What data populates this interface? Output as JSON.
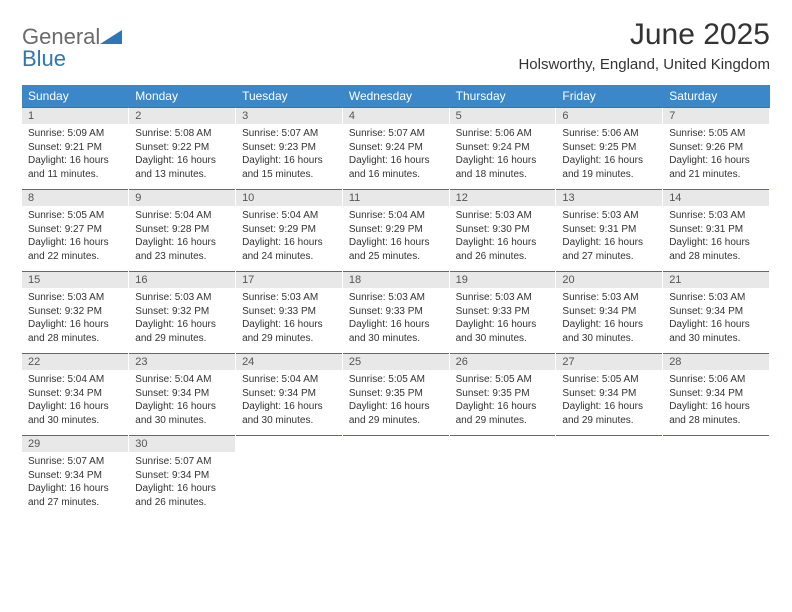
{
  "logo": {
    "text1": "General",
    "text2": "Blue"
  },
  "title": "June 2025",
  "location": "Holsworthy, England, United Kingdom",
  "colors": {
    "header_bg": "#3b87c8",
    "rule": "#2f76b8",
    "daynum_bg": "#e8e8e8",
    "text": "#333333",
    "logo_gray": "#6b6b6b",
    "logo_blue": "#2f76b8"
  },
  "daysOfWeek": [
    "Sunday",
    "Monday",
    "Tuesday",
    "Wednesday",
    "Thursday",
    "Friday",
    "Saturday"
  ],
  "weeks": [
    [
      {
        "n": "1",
        "sr": "5:09 AM",
        "ss": "9:21 PM",
        "dl": "16 hours and 11 minutes."
      },
      {
        "n": "2",
        "sr": "5:08 AM",
        "ss": "9:22 PM",
        "dl": "16 hours and 13 minutes."
      },
      {
        "n": "3",
        "sr": "5:07 AM",
        "ss": "9:23 PM",
        "dl": "16 hours and 15 minutes."
      },
      {
        "n": "4",
        "sr": "5:07 AM",
        "ss": "9:24 PM",
        "dl": "16 hours and 16 minutes."
      },
      {
        "n": "5",
        "sr": "5:06 AM",
        "ss": "9:24 PM",
        "dl": "16 hours and 18 minutes."
      },
      {
        "n": "6",
        "sr": "5:06 AM",
        "ss": "9:25 PM",
        "dl": "16 hours and 19 minutes."
      },
      {
        "n": "7",
        "sr": "5:05 AM",
        "ss": "9:26 PM",
        "dl": "16 hours and 21 minutes."
      }
    ],
    [
      {
        "n": "8",
        "sr": "5:05 AM",
        "ss": "9:27 PM",
        "dl": "16 hours and 22 minutes."
      },
      {
        "n": "9",
        "sr": "5:04 AM",
        "ss": "9:28 PM",
        "dl": "16 hours and 23 minutes."
      },
      {
        "n": "10",
        "sr": "5:04 AM",
        "ss": "9:29 PM",
        "dl": "16 hours and 24 minutes."
      },
      {
        "n": "11",
        "sr": "5:04 AM",
        "ss": "9:29 PM",
        "dl": "16 hours and 25 minutes."
      },
      {
        "n": "12",
        "sr": "5:03 AM",
        "ss": "9:30 PM",
        "dl": "16 hours and 26 minutes."
      },
      {
        "n": "13",
        "sr": "5:03 AM",
        "ss": "9:31 PM",
        "dl": "16 hours and 27 minutes."
      },
      {
        "n": "14",
        "sr": "5:03 AM",
        "ss": "9:31 PM",
        "dl": "16 hours and 28 minutes."
      }
    ],
    [
      {
        "n": "15",
        "sr": "5:03 AM",
        "ss": "9:32 PM",
        "dl": "16 hours and 28 minutes."
      },
      {
        "n": "16",
        "sr": "5:03 AM",
        "ss": "9:32 PM",
        "dl": "16 hours and 29 minutes."
      },
      {
        "n": "17",
        "sr": "5:03 AM",
        "ss": "9:33 PM",
        "dl": "16 hours and 29 minutes."
      },
      {
        "n": "18",
        "sr": "5:03 AM",
        "ss": "9:33 PM",
        "dl": "16 hours and 30 minutes."
      },
      {
        "n": "19",
        "sr": "5:03 AM",
        "ss": "9:33 PM",
        "dl": "16 hours and 30 minutes."
      },
      {
        "n": "20",
        "sr": "5:03 AM",
        "ss": "9:34 PM",
        "dl": "16 hours and 30 minutes."
      },
      {
        "n": "21",
        "sr": "5:03 AM",
        "ss": "9:34 PM",
        "dl": "16 hours and 30 minutes."
      }
    ],
    [
      {
        "n": "22",
        "sr": "5:04 AM",
        "ss": "9:34 PM",
        "dl": "16 hours and 30 minutes."
      },
      {
        "n": "23",
        "sr": "5:04 AM",
        "ss": "9:34 PM",
        "dl": "16 hours and 30 minutes."
      },
      {
        "n": "24",
        "sr": "5:04 AM",
        "ss": "9:34 PM",
        "dl": "16 hours and 30 minutes."
      },
      {
        "n": "25",
        "sr": "5:05 AM",
        "ss": "9:35 PM",
        "dl": "16 hours and 29 minutes."
      },
      {
        "n": "26",
        "sr": "5:05 AM",
        "ss": "9:35 PM",
        "dl": "16 hours and 29 minutes."
      },
      {
        "n": "27",
        "sr": "5:05 AM",
        "ss": "9:34 PM",
        "dl": "16 hours and 29 minutes."
      },
      {
        "n": "28",
        "sr": "5:06 AM",
        "ss": "9:34 PM",
        "dl": "16 hours and 28 minutes."
      }
    ],
    [
      {
        "n": "29",
        "sr": "5:07 AM",
        "ss": "9:34 PM",
        "dl": "16 hours and 27 minutes."
      },
      {
        "n": "30",
        "sr": "5:07 AM",
        "ss": "9:34 PM",
        "dl": "16 hours and 26 minutes."
      },
      null,
      null,
      null,
      null,
      null
    ]
  ],
  "labels": {
    "sunrise": "Sunrise: ",
    "sunset": "Sunset: ",
    "daylight": "Daylight: "
  }
}
